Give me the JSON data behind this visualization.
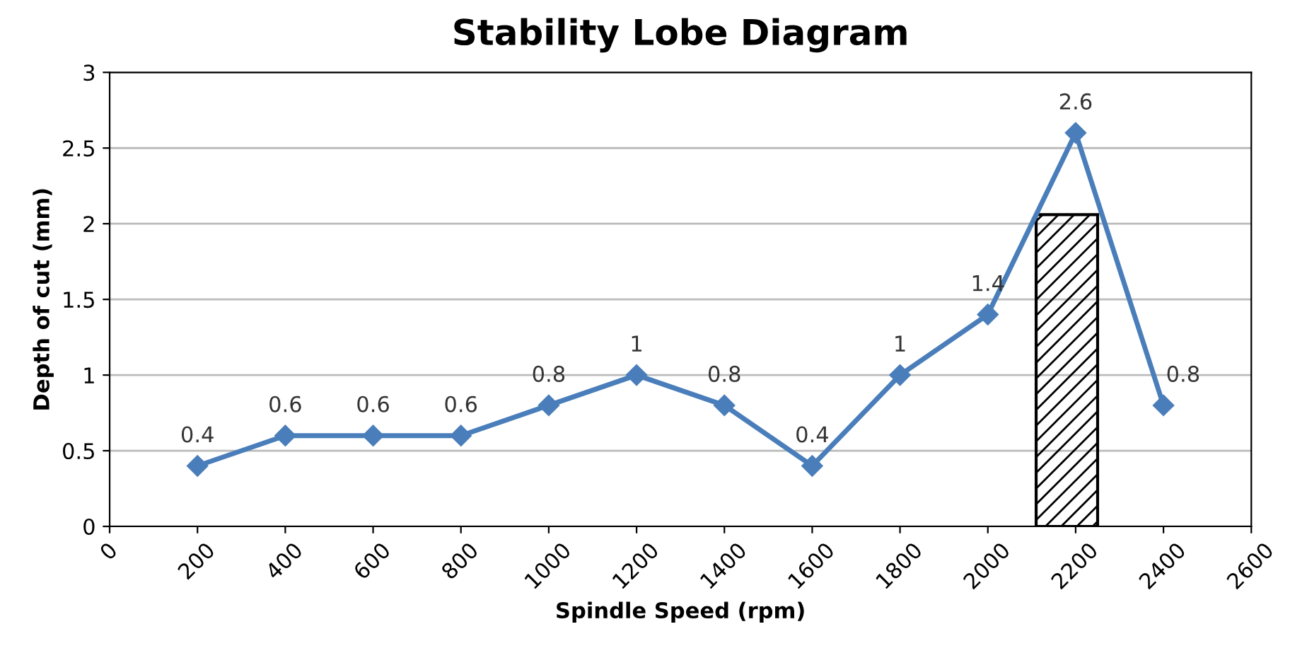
{
  "chart_data": {
    "type": "line",
    "title": "Stability Lobe Diagram",
    "xlabel": "Spindle Speed (rpm)",
    "ylabel": "Depth of cut (mm)",
    "x": [
      200,
      400,
      600,
      800,
      1000,
      1200,
      1400,
      1600,
      1800,
      2000,
      2200,
      2400
    ],
    "series": [
      {
        "color": "#4a7ebb",
        "values": [
          0.4,
          0.6,
          0.6,
          0.6,
          0.8,
          1,
          0.8,
          0.4,
          1,
          1.4,
          2.6,
          0.8
        ]
      }
    ],
    "xlim": [
      0,
      2600
    ],
    "xticks": [
      0,
      200,
      400,
      600,
      800,
      1000,
      1200,
      1400,
      1600,
      1800,
      2000,
      2200,
      2400,
      2600
    ],
    "ylim": [
      0,
      3
    ],
    "yticks": [
      0,
      0.5,
      1,
      1.5,
      2,
      2.5,
      3
    ],
    "grid": "y",
    "marker": "diamond",
    "line_style": "solid",
    "data_labels": true,
    "bands": [
      {
        "axis": "x",
        "from": 2110,
        "to": 2250,
        "color": "#000000"
      }
    ]
  }
}
